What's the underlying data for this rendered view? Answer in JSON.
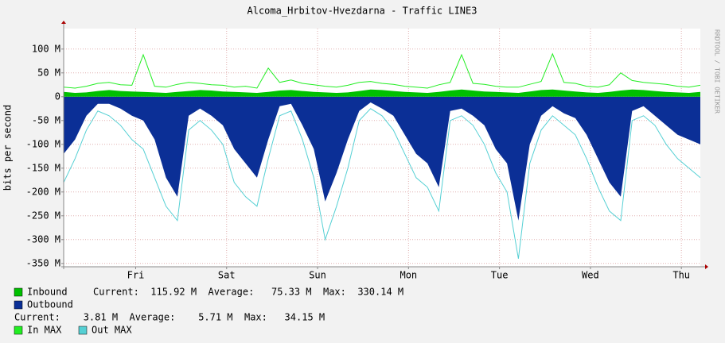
{
  "chart_data": {
    "type": "area",
    "title": "Alcoma_Hrbitov-Hvezdarna - Traffic LINE3",
    "y_label": "bits per second",
    "watermark": "RRDTOOL / TOBI OETIKER",
    "grid": true,
    "xlim": [
      0,
      168
    ],
    "xticks": [
      {
        "value": 19,
        "label": "Fri"
      },
      {
        "value": 43,
        "label": "Sat"
      },
      {
        "value": 67,
        "label": "Sun"
      },
      {
        "value": 91,
        "label": "Mon"
      },
      {
        "value": 115,
        "label": "Tue"
      },
      {
        "value": 139,
        "label": "Wed"
      },
      {
        "value": 163,
        "label": "Thu"
      }
    ],
    "ylim": [
      -357,
      143
    ],
    "yticks": [
      {
        "value": 100,
        "label": "100 M"
      },
      {
        "value": 50,
        "label": "50 M"
      },
      0,
      {
        "value": -50,
        "label": "-50 M"
      },
      {
        "value": -100,
        "label": "-100 M"
      },
      {
        "value": -150,
        "label": "-150 M"
      },
      {
        "value": -200,
        "label": "-200 M"
      },
      {
        "value": -250,
        "label": "-250 M"
      },
      {
        "value": -300,
        "label": "-300 M"
      },
      {
        "value": -350,
        "label": "-350 M"
      }
    ],
    "x": [
      0,
      3,
      6,
      9,
      12,
      15,
      18,
      21,
      24,
      27,
      30,
      33,
      36,
      39,
      42,
      45,
      48,
      51,
      54,
      57,
      60,
      63,
      66,
      69,
      72,
      75,
      78,
      81,
      84,
      87,
      90,
      93,
      96,
      99,
      102,
      105,
      108,
      111,
      114,
      117,
      120,
      123,
      126,
      129,
      132,
      135,
      138,
      141,
      144,
      147,
      150,
      153,
      156,
      159,
      162,
      165,
      168
    ],
    "series": [
      {
        "name": "Outbound",
        "color": "#0b2f96",
        "kind": "area",
        "values": [
          -120,
          -90,
          -40,
          -15,
          -15,
          -25,
          -40,
          -50,
          -90,
          -170,
          -210,
          -40,
          -25,
          -40,
          -60,
          -110,
          -140,
          -170,
          -90,
          -20,
          -15,
          -60,
          -110,
          -220,
          -160,
          -90,
          -30,
          -12,
          -25,
          -40,
          -80,
          -120,
          -140,
          -190,
          -30,
          -25,
          -40,
          -60,
          -110,
          -140,
          -260,
          -100,
          -40,
          -20,
          -35,
          -45,
          -80,
          -130,
          -180,
          -210,
          -30,
          -20,
          -40,
          -60,
          -80,
          -90,
          -100
        ],
        "stats": "Current:    3.81 M  Average:    5.71 M  Max:   34.15 M"
      },
      {
        "name": "Out MAX",
        "color": "#55d0d4",
        "kind": "line",
        "values": [
          -180,
          -130,
          -70,
          -30,
          -40,
          -60,
          -90,
          -110,
          -170,
          -230,
          -260,
          -70,
          -50,
          -70,
          -100,
          -180,
          -210,
          -230,
          -130,
          -40,
          -30,
          -90,
          -170,
          -300,
          -230,
          -150,
          -50,
          -25,
          -40,
          -70,
          -120,
          -170,
          -190,
          -240,
          -50,
          -40,
          -60,
          -100,
          -160,
          -200,
          -340,
          -140,
          -70,
          -40,
          -60,
          -80,
          -130,
          -190,
          -240,
          -260,
          -50,
          -40,
          -60,
          -100,
          -130,
          -150,
          -170
        ]
      },
      {
        "name": "Inbound",
        "color": "#00c000",
        "kind": "area",
        "values": [
          10,
          8,
          9,
          12,
          14,
          12,
          11,
          10,
          9,
          8,
          10,
          12,
          14,
          13,
          11,
          10,
          9,
          8,
          10,
          13,
          14,
          12,
          10,
          9,
          8,
          9,
          12,
          15,
          14,
          12,
          10,
          9,
          8,
          10,
          13,
          15,
          13,
          11,
          10,
          9,
          8,
          11,
          14,
          15,
          13,
          11,
          9,
          8,
          10,
          13,
          15,
          14,
          12,
          10,
          9,
          8,
          10
        ],
        "stats": "Current:  115.92 M  Average:   75.33 M  Max:  330.14 M"
      },
      {
        "name": "In MAX",
        "color": "#22ee22",
        "kind": "line",
        "values": [
          20,
          18,
          22,
          28,
          30,
          25,
          24,
          88,
          22,
          20,
          26,
          30,
          28,
          25,
          24,
          20,
          22,
          18,
          60,
          30,
          35,
          28,
          25,
          22,
          20,
          24,
          30,
          32,
          28,
          26,
          22,
          20,
          18,
          25,
          30,
          88,
          28,
          26,
          22,
          20,
          20,
          26,
          32,
          90,
          30,
          28,
          22,
          20,
          25,
          50,
          34,
          30,
          28,
          26,
          22,
          20,
          24
        ]
      }
    ]
  }
}
